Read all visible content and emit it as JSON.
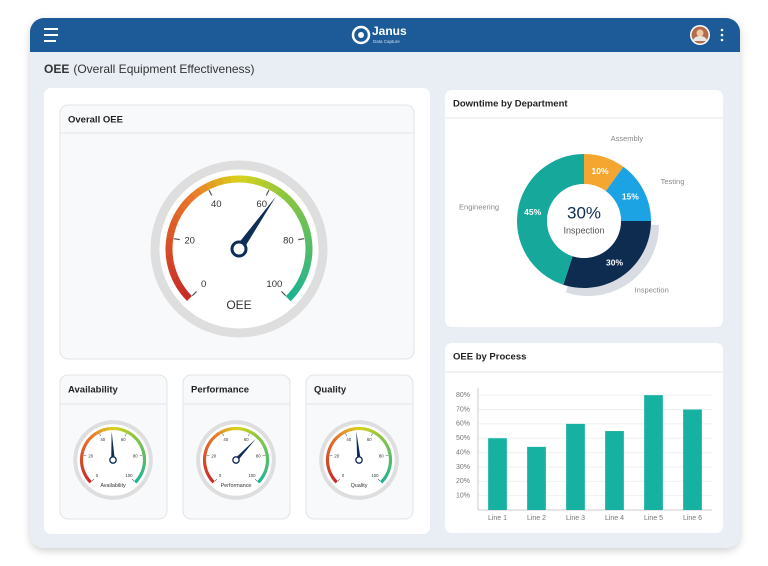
{
  "header": {
    "brand": "Janus",
    "tagline": "Data Capture"
  },
  "page": {
    "title_bold": "OEE",
    "title_rest": "(Overall Equipment Effectiveness)"
  },
  "gauges": [
    {
      "title": "Overall OEE",
      "label": "OEE",
      "value": 63,
      "lim": [
        0,
        100
      ],
      "ticks": [
        0,
        20,
        40,
        60,
        80,
        100
      ]
    },
    {
      "title": "Availability",
      "label": "Availability",
      "value": 49,
      "lim": [
        0,
        100
      ],
      "ticks": [
        0,
        20,
        40,
        60,
        80,
        100
      ]
    },
    {
      "title": "Performance",
      "label": "Performance",
      "value": 66,
      "lim": [
        0,
        100
      ],
      "ticks": [
        0,
        20,
        40,
        60,
        80,
        100
      ]
    },
    {
      "title": "Quality",
      "label": "Quality",
      "value": 48,
      "lim": [
        0,
        100
      ],
      "ticks": [
        0,
        20,
        40,
        60,
        80,
        100
      ]
    }
  ],
  "downtime": {
    "type": "pie",
    "title": "Downtime by Department",
    "categories": [
      "Assembly",
      "Testing",
      "Inspection",
      "Engineering"
    ],
    "values": [
      10,
      15,
      30,
      45
    ],
    "value_labels": [
      "10%",
      "15%",
      "30%",
      "45%"
    ],
    "colors": [
      "#f5a630",
      "#1ba3e3",
      "#0e2c50",
      "#17a89c"
    ]
  },
  "oee_by_process": {
    "type": "bar",
    "title": "OEE by Process",
    "categories": [
      "Line 1",
      "Line 2",
      "Line 3",
      "Line 4",
      "Line 5",
      "Line 6"
    ],
    "values": [
      50,
      44,
      60,
      55,
      80,
      70
    ],
    "color": "#17b1a2",
    "ylim": [
      0,
      85
    ],
    "yticks": [
      {
        "value": 10,
        "label": "10%"
      },
      {
        "value": 20,
        "label": "20%"
      },
      {
        "value": 30,
        "label": "30%"
      },
      {
        "value": 40,
        "label": "40%"
      },
      {
        "value": 50,
        "label": "50%"
      },
      {
        "value": 60,
        "label": "60%"
      },
      {
        "value": 70,
        "label": "70%"
      },
      {
        "value": 80,
        "label": "80%"
      }
    ],
    "grid": true
  }
}
